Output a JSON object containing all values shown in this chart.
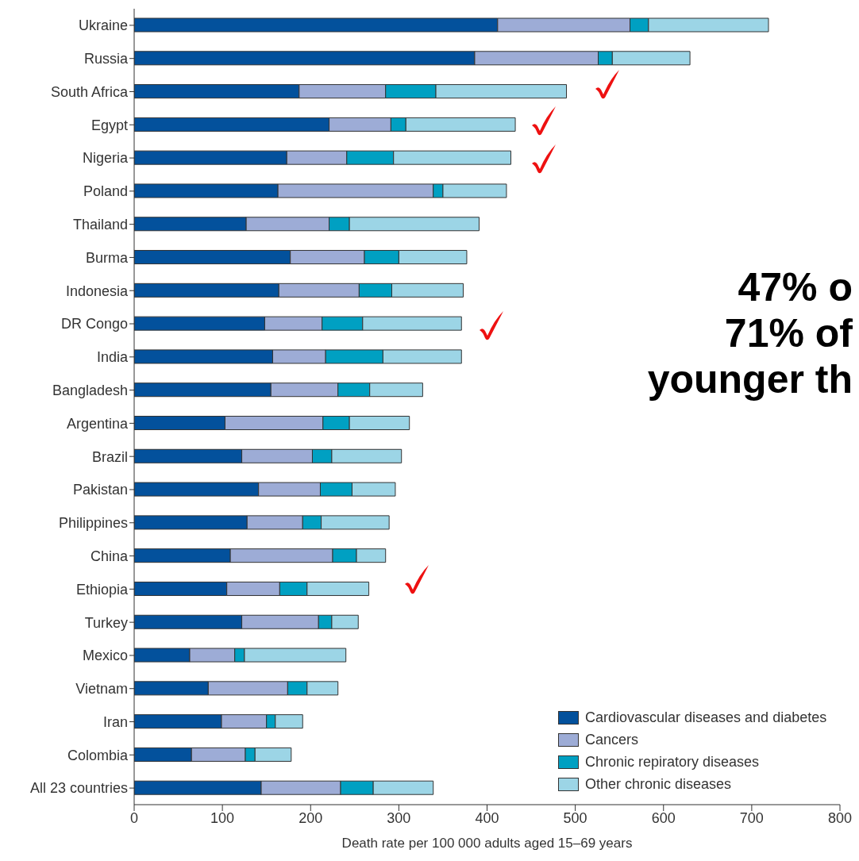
{
  "chart_data": {
    "type": "bar",
    "orientation": "horizontal",
    "stacked": true,
    "categories": [
      "Ukraine",
      "Russia",
      "South Africa",
      "Egypt",
      "Nigeria",
      "Poland",
      "Thailand",
      "Burma",
      "Indonesia",
      "DR Congo",
      "India",
      "Bangladesh",
      "Argentina",
      "Brazil",
      "Pakistan",
      "Philippines",
      "China",
      "Ethiopia",
      "Turkey",
      "Mexico",
      "Vietnam",
      "Iran",
      "Colombia",
      "All 23 countries"
    ],
    "series": [
      {
        "name": "Cardiovascular diseases and diabetes",
        "color": "#03519c",
        "values": [
          412,
          386,
          187,
          221,
          173,
          163,
          127,
          177,
          164,
          148,
          157,
          155,
          103,
          122,
          141,
          128,
          109,
          105,
          122,
          63,
          84,
          99,
          65,
          144
        ]
      },
      {
        "name": "Cancers",
        "color": "#9dacd6",
        "values": [
          150,
          140,
          98,
          70,
          68,
          176,
          94,
          84,
          91,
          65,
          60,
          76,
          111,
          80,
          70,
          63,
          116,
          60,
          87,
          51,
          90,
          51,
          61,
          90
        ]
      },
      {
        "name": "Chronic repiratory diseases",
        "color": "#00a0c2",
        "values": [
          21,
          16,
          57,
          17,
          53,
          11,
          23,
          39,
          37,
          46,
          65,
          36,
          30,
          22,
          36,
          21,
          27,
          31,
          15,
          11,
          22,
          10,
          11,
          37
        ]
      },
      {
        "name": "Other chronic diseases",
        "color": "#9cd5e6",
        "values": [
          136,
          88,
          148,
          124,
          133,
          72,
          147,
          77,
          81,
          112,
          89,
          60,
          68,
          79,
          49,
          77,
          33,
          70,
          30,
          115,
          35,
          31,
          41,
          68
        ]
      }
    ],
    "xlim": [
      0,
      800
    ],
    "xticks": [
      0,
      100,
      200,
      300,
      400,
      500,
      600,
      700,
      800
    ],
    "xlabel": "Death rate per 100 000 adults aged 15–69 years",
    "legend": "bottom right",
    "grid": false,
    "annotations": [
      "47% o",
      "71% of",
      "younger th"
    ]
  }
}
